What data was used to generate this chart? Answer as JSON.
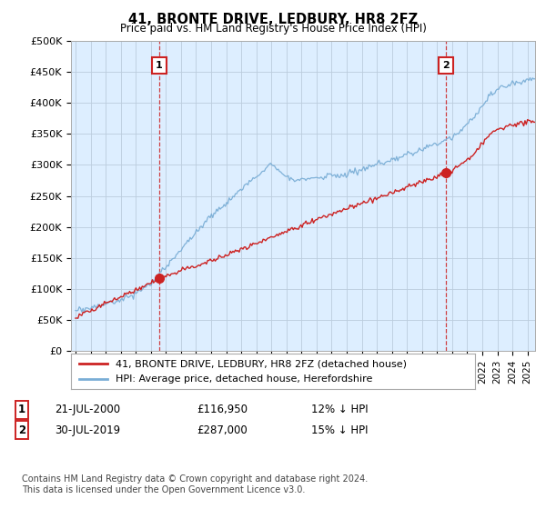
{
  "title": "41, BRONTE DRIVE, LEDBURY, HR8 2FZ",
  "subtitle": "Price paid vs. HM Land Registry's House Price Index (HPI)",
  "ylim": [
    0,
    500000
  ],
  "yticks": [
    0,
    50000,
    100000,
    150000,
    200000,
    250000,
    300000,
    350000,
    400000,
    450000,
    500000
  ],
  "ytick_labels": [
    "£0",
    "£50K",
    "£100K",
    "£150K",
    "£200K",
    "£250K",
    "£300K",
    "£350K",
    "£400K",
    "£450K",
    "£500K"
  ],
  "hpi_color": "#7aaed6",
  "price_color": "#cc2222",
  "annotation_color": "#cc2222",
  "background_color": "#ffffff",
  "chart_bg_color": "#ddeeff",
  "grid_color": "#bbccdd",
  "legend_entry1": "41, BRONTE DRIVE, LEDBURY, HR8 2FZ (detached house)",
  "legend_entry2": "HPI: Average price, detached house, Herefordshire",
  "sale1_date": "21-JUL-2000",
  "sale1_price": "£116,950",
  "sale1_hpi": "12% ↓ HPI",
  "sale1_x": 2000.55,
  "sale1_y": 116950,
  "sale2_date": "30-JUL-2019",
  "sale2_price": "£287,000",
  "sale2_hpi": "15% ↓ HPI",
  "sale2_x": 2019.58,
  "sale2_y": 287000,
  "footnote": "Contains HM Land Registry data © Crown copyright and database right 2024.\nThis data is licensed under the Open Government Licence v3.0.",
  "xmin": 1994.7,
  "xmax": 2025.5
}
